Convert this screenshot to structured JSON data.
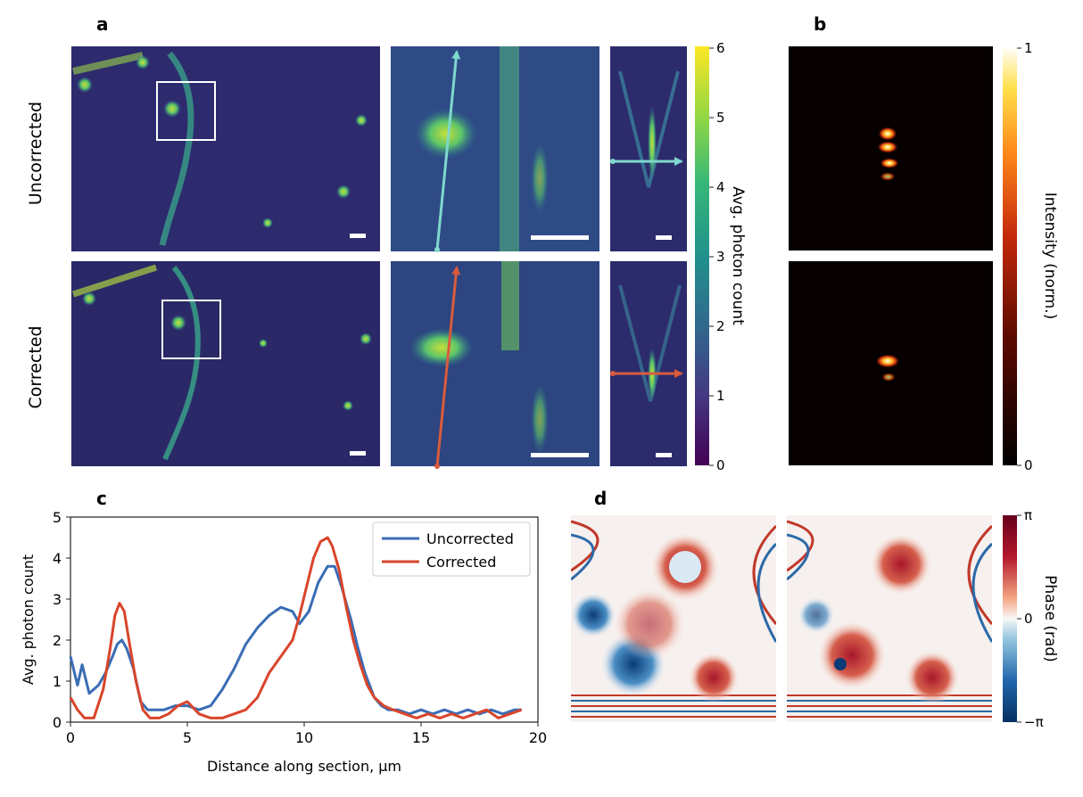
{
  "panel_a": {
    "letter": "a",
    "row_labels": [
      "Uncorrected",
      "Corrected"
    ],
    "colorbar": {
      "label": "Avg. photon count",
      "ticks": [
        "0",
        "1",
        "2",
        "3",
        "4",
        "5",
        "6"
      ],
      "range": [
        0,
        6
      ],
      "colormap": "viridis"
    },
    "arrow_colors": {
      "uncorrected": "#7fd8cc",
      "corrected": "#d95b3c"
    }
  },
  "panel_b": {
    "letter": "b",
    "colorbar": {
      "label": "Intensity (norm.)",
      "ticks": [
        "0",
        "1"
      ],
      "range": [
        0,
        1
      ],
      "colormap": "afmhot"
    }
  },
  "panel_d": {
    "letter": "d",
    "colorbar": {
      "label": "Phase (rad)",
      "ticks": [
        "−π",
        "0",
        "π"
      ],
      "colormap": "RdBu_r"
    }
  },
  "chart_data": {
    "type": "line",
    "panel_letter": "c",
    "xlabel": "Distance along section, μm",
    "ylabel": "Avg. photon count",
    "xlim": [
      0,
      20
    ],
    "ylim": [
      0,
      5
    ],
    "xticks": [
      "0",
      "5",
      "10",
      "15",
      "20"
    ],
    "yticks": [
      "0",
      "1",
      "2",
      "3",
      "4",
      "5"
    ],
    "legend_position": "top-right",
    "grid": false,
    "series": [
      {
        "name": "Uncorrected",
        "color": "#3a6db5",
        "x": [
          0,
          0.3,
          0.5,
          0.8,
          1.2,
          1.5,
          1.8,
          2.0,
          2.2,
          2.4,
          2.7,
          3.0,
          3.3,
          3.6,
          4.0,
          4.5,
          5.0,
          5.5,
          6.0,
          6.5,
          7.0,
          7.5,
          8.0,
          8.5,
          9.0,
          9.5,
          9.8,
          10.2,
          10.6,
          11.0,
          11.3,
          11.6,
          12.0,
          12.3,
          12.6,
          13.0,
          13.3,
          13.6,
          14.0,
          14.5,
          15.0,
          15.5,
          16.0,
          16.5,
          17.0,
          17.5,
          18.0,
          18.5,
          19.0,
          19.3
        ],
        "y": [
          1.6,
          0.9,
          1.4,
          0.7,
          0.9,
          1.2,
          1.6,
          1.9,
          2.0,
          1.8,
          1.3,
          0.5,
          0.3,
          0.3,
          0.3,
          0.4,
          0.4,
          0.3,
          0.4,
          0.8,
          1.3,
          1.9,
          2.3,
          2.6,
          2.8,
          2.7,
          2.4,
          2.7,
          3.4,
          3.8,
          3.8,
          3.3,
          2.5,
          1.8,
          1.2,
          0.6,
          0.4,
          0.3,
          0.3,
          0.2,
          0.3,
          0.2,
          0.3,
          0.2,
          0.3,
          0.2,
          0.3,
          0.2,
          0.3,
          0.3
        ]
      },
      {
        "name": "Corrected",
        "color": "#d9452b",
        "x": [
          0,
          0.3,
          0.6,
          1.0,
          1.4,
          1.7,
          1.9,
          2.1,
          2.3,
          2.5,
          2.8,
          3.1,
          3.4,
          3.8,
          4.2,
          4.6,
          5.0,
          5.5,
          6.0,
          6.5,
          7.0,
          7.5,
          8.0,
          8.5,
          9.0,
          9.5,
          9.8,
          10.1,
          10.4,
          10.7,
          11.0,
          11.2,
          11.5,
          11.8,
          12.1,
          12.4,
          12.7,
          13.0,
          13.4,
          13.8,
          14.3,
          14.8,
          15.3,
          15.8,
          16.3,
          16.8,
          17.3,
          17.8,
          18.3,
          18.8,
          19.3
        ],
        "y": [
          0.6,
          0.3,
          0.1,
          0.1,
          0.8,
          1.8,
          2.6,
          2.9,
          2.7,
          2.0,
          1.0,
          0.3,
          0.1,
          0.1,
          0.2,
          0.4,
          0.5,
          0.2,
          0.1,
          0.1,
          0.2,
          0.3,
          0.6,
          1.2,
          1.6,
          2.0,
          2.6,
          3.3,
          4.0,
          4.4,
          4.5,
          4.3,
          3.7,
          2.8,
          2.0,
          1.4,
          0.9,
          0.6,
          0.4,
          0.3,
          0.2,
          0.1,
          0.2,
          0.1,
          0.2,
          0.1,
          0.2,
          0.3,
          0.1,
          0.2,
          0.3
        ]
      }
    ]
  }
}
